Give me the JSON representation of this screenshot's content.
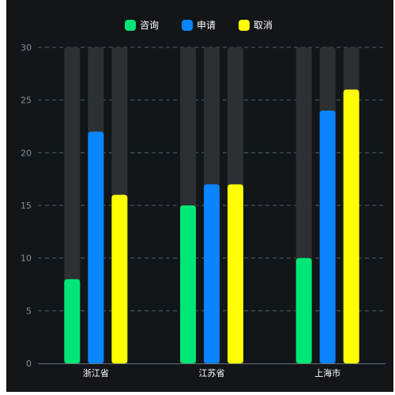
{
  "chart_data": {
    "type": "bar",
    "title": "",
    "xlabel": "",
    "ylabel": "",
    "categories": [
      "浙江省",
      "江苏省",
      "上海市"
    ],
    "series": [
      {
        "name": "咨询",
        "values": [
          8,
          15,
          10
        ],
        "color": "#00e676"
      },
      {
        "name": "申请",
        "values": [
          22,
          17,
          24
        ],
        "color": "#0a84ff"
      },
      {
        "name": "取消",
        "values": [
          16,
          17,
          26
        ],
        "color": "#ffff00"
      }
    ],
    "background_bar_value": 30,
    "background_bar_color": "#2c3033",
    "ylim": [
      0,
      30
    ],
    "yticks": [
      0,
      5,
      10,
      15,
      20,
      25,
      30
    ],
    "grid": true,
    "legend_position": "top-center"
  }
}
